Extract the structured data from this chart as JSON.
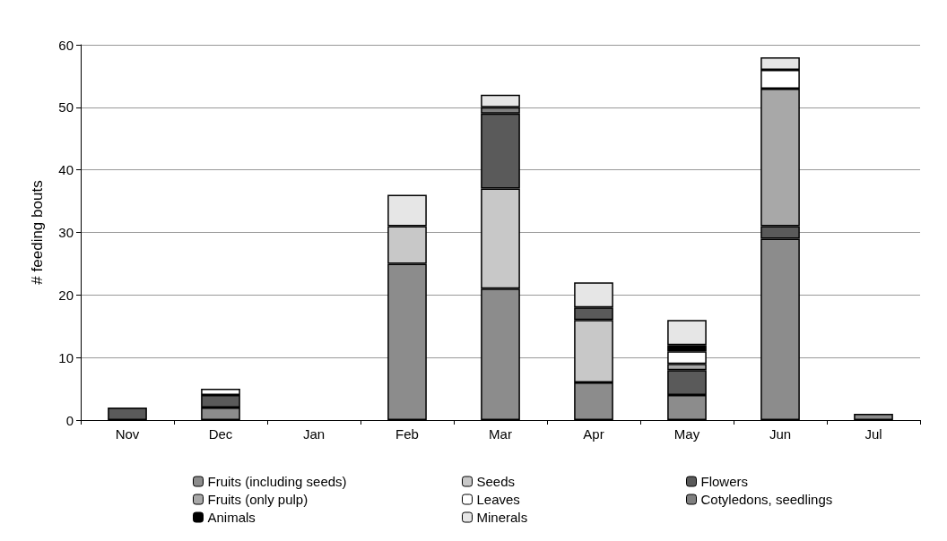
{
  "chart_data": {
    "type": "bar",
    "stacked": true,
    "ylabel": "# feeding bouts",
    "categories": [
      "Nov",
      "Dec",
      "Jan",
      "Feb",
      "Mar",
      "Apr",
      "May",
      "Jun",
      "Jul"
    ],
    "series": [
      {
        "name": "Fruits (including seeds)",
        "color": "#8c8c8c",
        "values": [
          null,
          2,
          null,
          25,
          21,
          6,
          4,
          29,
          1
        ]
      },
      {
        "name": "Seeds",
        "color": "#c8c8c8",
        "values": [
          null,
          null,
          null,
          6,
          16,
          10,
          null,
          null,
          null
        ]
      },
      {
        "name": "Flowers",
        "color": "#5a5a5a",
        "values": [
          2,
          2,
          null,
          null,
          12,
          2,
          4,
          2,
          null
        ]
      },
      {
        "name": "Fruits (only pulp)",
        "color": "#a8a8a8",
        "values": [
          null,
          null,
          null,
          null,
          null,
          null,
          1,
          22,
          null
        ]
      },
      {
        "name": "Leaves",
        "color": "#ffffff",
        "values": [
          null,
          1,
          null,
          null,
          null,
          null,
          2,
          3,
          null
        ]
      },
      {
        "name": "Cotyledons, seedlings",
        "color": "#808080",
        "values": [
          null,
          null,
          null,
          null,
          1,
          null,
          null,
          null,
          null
        ]
      },
      {
        "name": "Animals",
        "color": "#000000",
        "values": [
          null,
          null,
          null,
          null,
          null,
          null,
          1,
          null,
          null
        ]
      },
      {
        "name": "Minerals",
        "color": "#e6e6e6",
        "values": [
          null,
          null,
          null,
          5,
          2,
          4,
          4,
          2,
          null
        ]
      }
    ],
    "ylim": [
      0,
      60
    ],
    "yticks": [
      0,
      10,
      20,
      30,
      40,
      50,
      60
    ],
    "grid": "y",
    "legend": "bottom"
  }
}
